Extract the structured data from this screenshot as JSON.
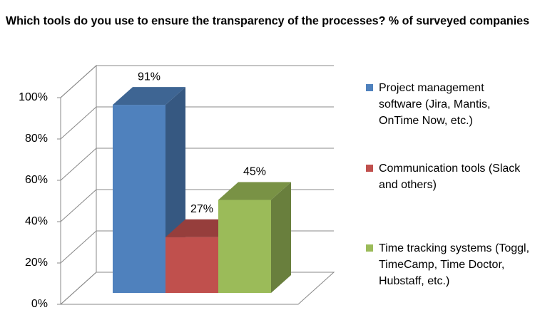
{
  "chart_data": {
    "type": "bar3d",
    "title": "Which tools do you use to ensure the transparency of the processes? % of surveyed companies",
    "ylim": [
      0,
      100
    ],
    "yticks": [
      {
        "value": 0,
        "label": "0%"
      },
      {
        "value": 20,
        "label": "20%"
      },
      {
        "value": 40,
        "label": "40%"
      },
      {
        "value": 60,
        "label": "60%"
      },
      {
        "value": 80,
        "label": "80%"
      },
      {
        "value": 100,
        "label": "100%"
      }
    ],
    "grid": true,
    "legend": "right",
    "series": [
      {
        "name": "Project management software (Jira, Mantis, OnTime Now, etc.)",
        "color": "#4f81bd",
        "values": [
          91
        ],
        "value_labels": [
          "91%"
        ]
      },
      {
        "name": "Communication tools (Slack and others)",
        "color": "#c0504d",
        "values": [
          27
        ],
        "value_labels": [
          "27%"
        ]
      },
      {
        "name": "Time tracking systems (Toggl, TimeCamp, Time Doctor, Hubstaff, etc.)",
        "color": "#9bbb59",
        "values": [
          45
        ],
        "value_labels": [
          "45%"
        ]
      }
    ]
  }
}
